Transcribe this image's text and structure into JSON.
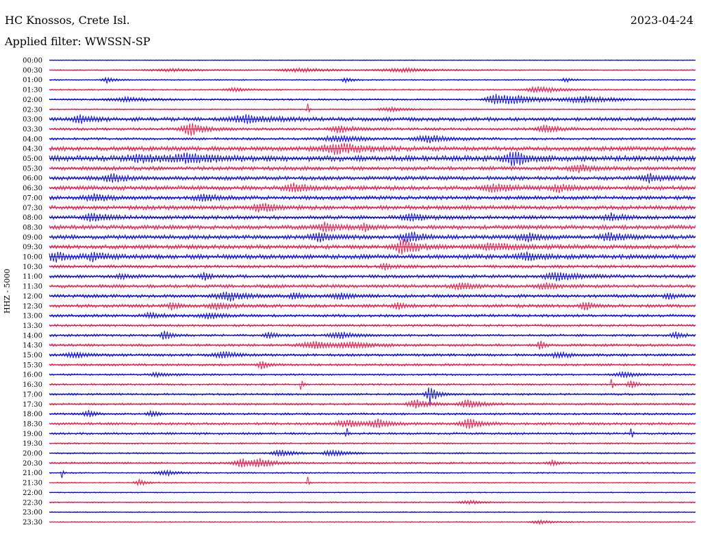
{
  "header": {
    "station": "HC Knossos, Crete Isl.",
    "date": "2023-04-24",
    "filter": "Applied filter: WWSSN-SP"
  },
  "chart_data": {
    "type": "line",
    "title": "HC Knossos, Crete Isl.",
    "ylabel": "HHZ - 5000",
    "colors": [
      "#0000ee",
      "#ee1144"
    ],
    "time_labels": [
      "00:00",
      "00:30",
      "01:00",
      "01:30",
      "02:00",
      "02:30",
      "03:00",
      "03:30",
      "04:00",
      "04:30",
      "05:00",
      "05:30",
      "06:00",
      "06:30",
      "07:00",
      "07:30",
      "08:00",
      "08:30",
      "09:00",
      "09:30",
      "10:00",
      "10:30",
      "11:00",
      "11:30",
      "12:00",
      "12:30",
      "13:00",
      "13:30",
      "14:00",
      "14:30",
      "15:00",
      "15:30",
      "16:00",
      "16:30",
      "17:00",
      "17:30",
      "18:00",
      "18:30",
      "19:00",
      "19:30",
      "20:00",
      "20:30",
      "21:00",
      "21:30",
      "22:00",
      "22:30",
      "23:00",
      "23:30"
    ],
    "noise_level": [
      0.4,
      0.6,
      0.7,
      0.8,
      1.0,
      0.7,
      2.2,
      1.6,
      1.4,
      2.5,
      3.2,
      2.2,
      2.2,
      2.4,
      2.2,
      2.4,
      2.2,
      2.4,
      2.4,
      2.4,
      2.6,
      1.8,
      1.9,
      1.9,
      1.9,
      1.9,
      1.6,
      1.4,
      1.4,
      1.5,
      1.5,
      1.3,
      1.1,
      1.1,
      1.2,
      1.2,
      1.2,
      1.5,
      1.3,
      0.9,
      0.9,
      1.1,
      0.8,
      0.7,
      0.6,
      0.7,
      0.6,
      0.6
    ],
    "events": [
      [],
      [
        [
          0.19,
          2,
          0.05
        ],
        [
          0.39,
          3,
          0.05
        ],
        [
          0.55,
          3,
          0.05
        ]
      ],
      [
        [
          0.09,
          5,
          0.01
        ],
        [
          0.46,
          4,
          0.01
        ],
        [
          0.8,
          3,
          0.01
        ]
      ],
      [
        [
          0.29,
          3,
          0.02
        ],
        [
          0.76,
          5,
          0.03
        ]
      ],
      [
        [
          0.12,
          3,
          0.04
        ],
        [
          0.69,
          8,
          0.02
        ],
        [
          0.73,
          5,
          0.04
        ],
        [
          0.83,
          5,
          0.04
        ]
      ],
      [
        [
          0.4,
          10,
          0.002
        ],
        [
          0.53,
          3,
          0.03
        ]
      ],
      [
        [
          0.05,
          6,
          0.02
        ],
        [
          0.31,
          5,
          0.04
        ]
      ],
      [
        [
          0.22,
          9,
          0.02
        ],
        [
          0.45,
          5,
          0.02
        ],
        [
          0.77,
          5,
          0.02
        ]
      ],
      [
        [
          0.45,
          4,
          0.04
        ],
        [
          0.59,
          5,
          0.03
        ]
      ],
      [
        [
          0.45,
          7,
          0.04
        ]
      ],
      [
        [
          0.14,
          5,
          0.03
        ],
        [
          0.22,
          5,
          0.04
        ],
        [
          0.72,
          10,
          0.02
        ]
      ],
      [
        [
          0.82,
          5,
          0.02
        ]
      ],
      [
        [
          0.1,
          5,
          0.02
        ],
        [
          0.93,
          5,
          0.02
        ]
      ],
      [
        [
          0.38,
          6,
          0.02
        ],
        [
          0.69,
          5,
          0.03
        ],
        [
          0.79,
          5,
          0.02
        ]
      ],
      [
        [
          0.07,
          5,
          0.02
        ],
        [
          0.24,
          5,
          0.02
        ]
      ],
      [
        [
          0.33,
          6,
          0.02
        ]
      ],
      [
        [
          0.07,
          6,
          0.02
        ],
        [
          0.56,
          6,
          0.02
        ],
        [
          0.87,
          5,
          0.02
        ]
      ],
      [
        [
          0.43,
          6,
          0.02
        ],
        [
          0.49,
          5,
          0.01
        ]
      ],
      [
        [
          0.42,
          6,
          0.02
        ],
        [
          0.56,
          7,
          0.02
        ],
        [
          0.74,
          6,
          0.02
        ],
        [
          0.87,
          6,
          0.02
        ]
      ],
      [
        [
          0.55,
          10,
          0.02
        ],
        [
          0.69,
          5,
          0.04
        ]
      ],
      [
        [
          0.01,
          6,
          0.02
        ],
        [
          0.07,
          5,
          0.02
        ],
        [
          0.74,
          5,
          0.02
        ]
      ],
      [
        [
          0.52,
          5,
          0.01
        ]
      ],
      [
        [
          0.11,
          5,
          0.01
        ],
        [
          0.24,
          5,
          0.01
        ],
        [
          0.79,
          6,
          0.03
        ]
      ],
      [
        [
          0.64,
          5,
          0.02
        ],
        [
          0.77,
          4,
          0.02
        ]
      ],
      [
        [
          0.28,
          6,
          0.03
        ],
        [
          0.38,
          5,
          0.01
        ],
        [
          0.45,
          5,
          0.02
        ],
        [
          0.96,
          4,
          0.01
        ]
      ],
      [
        [
          0.19,
          5,
          0.01
        ],
        [
          0.26,
          5,
          0.02
        ],
        [
          0.54,
          5,
          0.01
        ],
        [
          0.83,
          6,
          0.01
        ]
      ],
      [
        [
          0.16,
          4,
          0.02
        ],
        [
          0.25,
          4,
          0.02
        ]
      ],
      [],
      [
        [
          0.18,
          7,
          0.01
        ],
        [
          0.34,
          5,
          0.01
        ],
        [
          0.45,
          5,
          0.02
        ],
        [
          0.97,
          5,
          0.01
        ]
      ],
      [
        [
          0.41,
          5,
          0.03
        ],
        [
          0.47,
          4,
          0.03
        ],
        [
          0.76,
          9,
          0.005
        ]
      ],
      [
        [
          0.04,
          4,
          0.02
        ],
        [
          0.27,
          5,
          0.02
        ],
        [
          0.79,
          4,
          0.02
        ]
      ],
      [
        [
          0.33,
          6,
          0.01
        ]
      ],
      [
        [
          0.17,
          3,
          0.02
        ],
        [
          0.89,
          4,
          0.02
        ]
      ],
      [
        [
          0.39,
          12,
          0.002
        ],
        [
          0.87,
          12,
          0.002
        ],
        [
          0.9,
          6,
          0.01
        ]
      ],
      [
        [
          0.59,
          14,
          0.01
        ]
      ],
      [
        [
          0.57,
          6,
          0.02
        ],
        [
          0.65,
          6,
          0.02
        ]
      ],
      [
        [
          0.06,
          6,
          0.01
        ],
        [
          0.16,
          5,
          0.01
        ]
      ],
      [
        [
          0.46,
          6,
          0.02
        ],
        [
          0.51,
          6,
          0.02
        ],
        [
          0.65,
          7,
          0.02
        ]
      ],
      [
        [
          0.46,
          12,
          0.002
        ],
        [
          0.9,
          12,
          0.002
        ]
      ],
      [],
      [
        [
          0.36,
          5,
          0.02
        ],
        [
          0.44,
          5,
          0.02
        ]
      ],
      [
        [
          0.3,
          6,
          0.02
        ],
        [
          0.33,
          5,
          0.02
        ],
        [
          0.78,
          4,
          0.01
        ]
      ],
      [
        [
          0.02,
          8,
          0.002
        ],
        [
          0.18,
          4,
          0.02
        ]
      ],
      [
        [
          0.14,
          5,
          0.01
        ],
        [
          0.4,
          9,
          0.002
        ]
      ],
      [],
      [
        [
          0.65,
          3,
          0.02
        ]
      ],
      [],
      [
        [
          0.76,
          3,
          0.02
        ]
      ]
    ]
  }
}
